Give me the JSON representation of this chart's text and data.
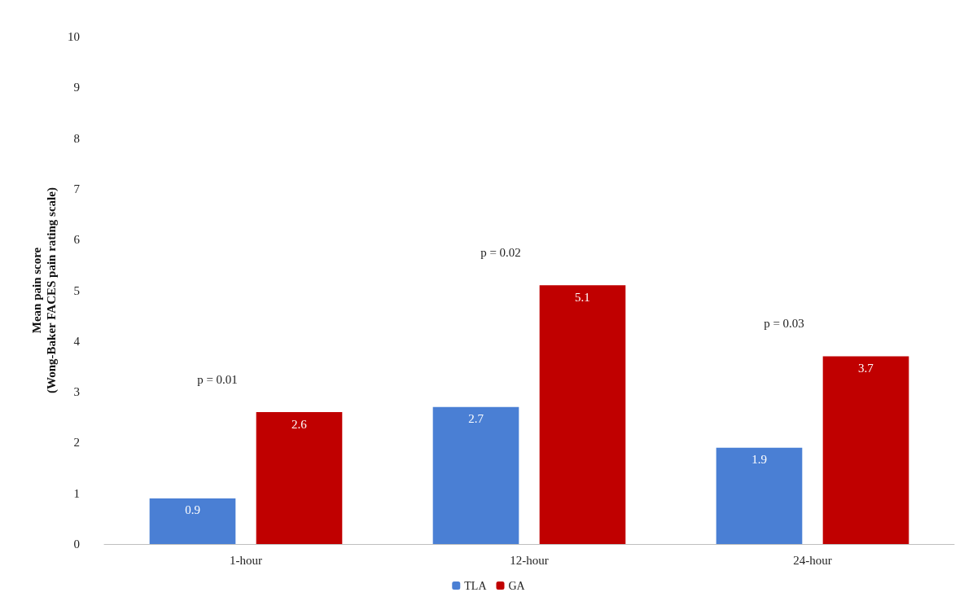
{
  "chart_data": {
    "type": "bar",
    "ylabel": "Mean pain score\n(Wong-Baker FACES pain rating scale)",
    "categories": [
      "1-hour",
      "12-hour",
      "24-hour"
    ],
    "series": [
      {
        "name": "TLA",
        "color": "#4a7fd4",
        "values": [
          0.9,
          2.7,
          1.9
        ]
      },
      {
        "name": "GA",
        "color": "#c00000",
        "values": [
          2.6,
          5.1,
          3.7
        ]
      }
    ],
    "ylim": [
      0,
      10
    ],
    "yticks": [
      0,
      1,
      2,
      3,
      4,
      5,
      6,
      7,
      8,
      9,
      10
    ],
    "grid": false,
    "legend": "bottom",
    "data_labels": true,
    "annotations": [
      "p = 0.01",
      "p = 0.02",
      "p = 0.03"
    ]
  }
}
